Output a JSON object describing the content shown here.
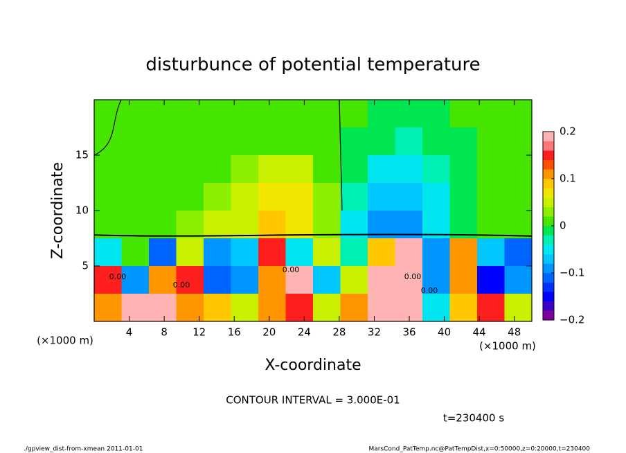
{
  "chart_data": {
    "type": "heatmap",
    "title": "disturbunce of potential temperature",
    "xlabel": "X-coordinate",
    "ylabel": "Z-coordinate",
    "x_unit": "(×1000 m)",
    "y_unit": "(×1000 m)",
    "contour_interval": "CONTOUR INTERVAL = 3.000E-01",
    "time_label": "t=230400 s",
    "footer_left": "./gpview_dist-from-xmean  2011-01-01",
    "footer_right": "MarsCond_PatTemp.nc@PatTempDist,x=0:50000,z=0:20000,t=230400",
    "contour_labels": [
      "0.00",
      "0.00",
      "0.00",
      "0.00",
      "0.00"
    ],
    "xlim": [
      0,
      50
    ],
    "ylim": [
      0,
      20
    ],
    "xticks": [
      4,
      8,
      12,
      16,
      20,
      24,
      28,
      32,
      36,
      40,
      44,
      48
    ],
    "yticks": [
      5,
      10,
      15
    ],
    "x": [
      1.56,
      4.69,
      7.81,
      10.94,
      14.06,
      17.19,
      20.31,
      23.44,
      26.56,
      29.69,
      32.81,
      35.94,
      39.06,
      42.19,
      45.31,
      48.44
    ],
    "z": [
      18.75,
      16.25,
      13.75,
      11.25,
      8.75,
      6.25,
      3.75,
      1.25
    ],
    "values": [
      [
        0,
        0.01,
        0.01,
        0.01,
        0.01,
        0.01,
        0.01,
        0.01,
        0.01,
        0,
        -0.01,
        -0.01,
        -0.01,
        0,
        0,
        0
      ],
      [
        0,
        0.01,
        0.01,
        0.01,
        0.01,
        0.01,
        0.02,
        0.02,
        0.01,
        -0.01,
        -0.02,
        -0.03,
        -0.02,
        -0.01,
        0,
        0
      ],
      [
        0.01,
        0.01,
        0.01,
        0.02,
        0.02,
        0.03,
        0.04,
        0.04,
        0.02,
        -0.02,
        -0.05,
        -0.05,
        -0.03,
        -0.01,
        0,
        0.01
      ],
      [
        0.01,
        0.01,
        0.02,
        0.02,
        0.03,
        0.04,
        0.06,
        0.06,
        0.03,
        -0.03,
        -0.08,
        -0.08,
        -0.04,
        -0.01,
        0,
        0.01
      ],
      [
        0.01,
        0.02,
        0.02,
        0.03,
        0.04,
        0.05,
        0.08,
        0.07,
        0.03,
        -0.04,
        -0.1,
        -0.09,
        -0.05,
        -0.01,
        0,
        0.01
      ],
      [
        -0.05,
        0,
        -0.12,
        0.05,
        -0.1,
        -0.08,
        0.15,
        -0.05,
        0.05,
        -0.03,
        0.08,
        0.2,
        -0.1,
        0.1,
        -0.08,
        -0.12
      ],
      [
        0.15,
        -0.1,
        0.12,
        0.15,
        -0.12,
        -0.1,
        0.1,
        0.18,
        -0.08,
        0.05,
        0.2,
        0.2,
        -0.1,
        0.12,
        -0.15,
        -0.1
      ],
      [
        0.1,
        0.18,
        0.2,
        0.1,
        0.08,
        0.05,
        0.12,
        0.15,
        0.05,
        0.1,
        0.2,
        0.2,
        -0.05,
        0.08,
        0.15,
        0.05
      ]
    ],
    "clim": [
      -0.2,
      0.2
    ],
    "cticks": [
      0.2,
      0.1,
      0,
      {
        "value": -0.1,
        "label": "−0.1"
      },
      {
        "value": -0.2,
        "label": "−0.2"
      }
    ],
    "colormap": [
      "#7f00a0",
      "#3c00c8",
      "#0000ff",
      "#0032ff",
      "#0064ff",
      "#0096ff",
      "#00c8ff",
      "#00e6f0",
      "#00f0b4",
      "#00e650",
      "#46e600",
      "#8cf000",
      "#c8f000",
      "#f0e600",
      "#ffc800",
      "#ff9600",
      "#ff5000",
      "#ff1e1e",
      "#ff7878",
      "#ffb4b4"
    ]
  }
}
